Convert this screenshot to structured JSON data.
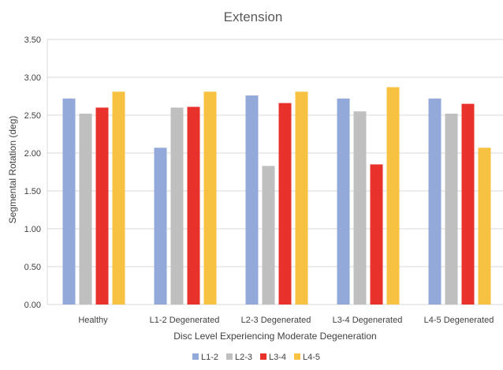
{
  "chart_data": {
    "type": "bar",
    "title": "Extension",
    "xlabel": "Disc Level Experiencing Moderate Degeneration",
    "ylabel": "Segmental Rotation (deg)",
    "ylim": [
      0,
      3.5
    ],
    "yticks": [
      "0.00",
      "0.50",
      "1.00",
      "1.50",
      "2.00",
      "2.50",
      "3.00",
      "3.50"
    ],
    "grid": true,
    "legend_position": "bottom",
    "categories": [
      "Healthy",
      "L1-2 Degenerated",
      "L2-3 Degenerated",
      "L3-4 Degenerated",
      "L4-5 Degenerated"
    ],
    "series": [
      {
        "name": "L1-2",
        "color": "#92a9d9",
        "values": [
          2.72,
          2.07,
          2.76,
          2.72,
          2.72
        ]
      },
      {
        "name": "L2-3",
        "color": "#bfbfbf",
        "values": [
          2.52,
          2.6,
          1.83,
          2.55,
          2.52
        ]
      },
      {
        "name": "L3-4",
        "color": "#e8312a",
        "values": [
          2.6,
          2.61,
          2.66,
          1.85,
          2.65
        ]
      },
      {
        "name": "L4-5",
        "color": "#f7c141",
        "values": [
          2.81,
          2.81,
          2.81,
          2.87,
          2.07
        ]
      }
    ]
  }
}
